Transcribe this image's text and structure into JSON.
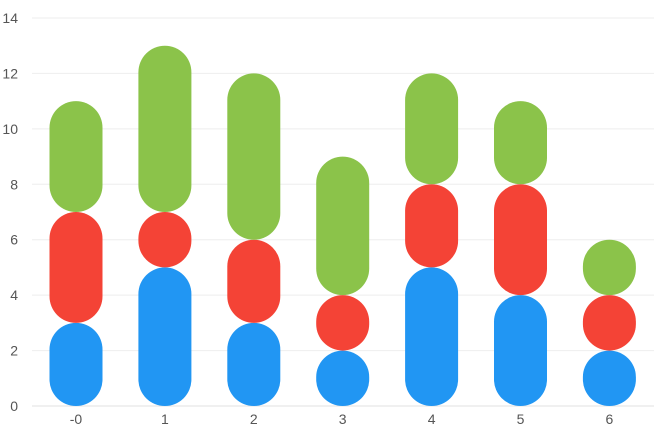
{
  "chart_data": {
    "type": "bar",
    "stacked": true,
    "bar_style": "rounded-capsule",
    "title": "",
    "xlabel": "",
    "ylabel": "",
    "categories": [
      "-0",
      "1",
      "2",
      "3",
      "4",
      "5",
      "6"
    ],
    "ylim": [
      0,
      14
    ],
    "yticks": [
      0,
      2,
      4,
      6,
      8,
      10,
      12,
      14
    ],
    "grid": true,
    "legend": "none",
    "series": [
      {
        "color": "#2196f3",
        "values": [
          3,
          5,
          3,
          2,
          5,
          4,
          2
        ]
      },
      {
        "color": "#f44336",
        "values": [
          4,
          2,
          3,
          2,
          3,
          4,
          2
        ]
      },
      {
        "color": "#8bc34a",
        "values": [
          4,
          6,
          6,
          5,
          4,
          3,
          2
        ]
      }
    ]
  }
}
